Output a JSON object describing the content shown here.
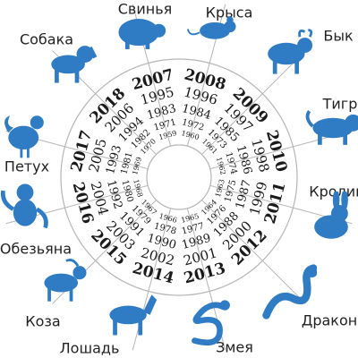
{
  "colors": {
    "accent": "#2f7bc4",
    "line": "#b5b5b5",
    "text": "#1a1a1a"
  },
  "sectors": [
    {
      "animal": "Крыса",
      "icon": "rat-icon",
      "years": [
        "2008",
        "1996",
        "1984",
        "1972",
        "1960"
      ]
    },
    {
      "animal": "Бык",
      "icon": "ox-icon",
      "years": [
        "2009",
        "1997",
        "1985",
        "1973",
        "1961"
      ]
    },
    {
      "animal": "Тигр",
      "icon": "tiger-icon",
      "years": [
        "2010",
        "1998",
        "1986",
        "1974",
        "1962"
      ]
    },
    {
      "animal": "Кролик",
      "icon": "rabbit-icon",
      "years": [
        "2011",
        "1999",
        "1987",
        "1975",
        "1963"
      ]
    },
    {
      "animal": "Дракон",
      "icon": "dragon-icon",
      "years": [
        "2012",
        "2000",
        "1988",
        "1976",
        "1964"
      ]
    },
    {
      "animal": "Змея",
      "icon": "snake-icon",
      "years": [
        "2013",
        "2001",
        "1989",
        "1977",
        "1965"
      ]
    },
    {
      "animal": "Лошадь",
      "icon": "horse-icon",
      "years": [
        "2014",
        "2002",
        "1990",
        "1978",
        "1966"
      ]
    },
    {
      "animal": "Коза",
      "icon": "goat-icon",
      "years": [
        "2015",
        "2003",
        "1991",
        "1979",
        "1967"
      ]
    },
    {
      "animal": "Обезьяна",
      "icon": "monkey-icon",
      "years": [
        "2016",
        "2004",
        "1992",
        "1980",
        "1968"
      ]
    },
    {
      "animal": "Петух",
      "icon": "rooster-icon",
      "years": [
        "2017",
        "2005",
        "1993",
        "1981",
        "1969"
      ]
    },
    {
      "animal": "Собака",
      "icon": "dog-icon",
      "years": [
        "2018",
        "2006",
        "1994",
        "1982",
        "1970"
      ]
    },
    {
      "animal": "Свинья",
      "icon": "pig-icon",
      "years": [
        "2007",
        "1995",
        "1983",
        "1971",
        "1959"
      ]
    }
  ]
}
